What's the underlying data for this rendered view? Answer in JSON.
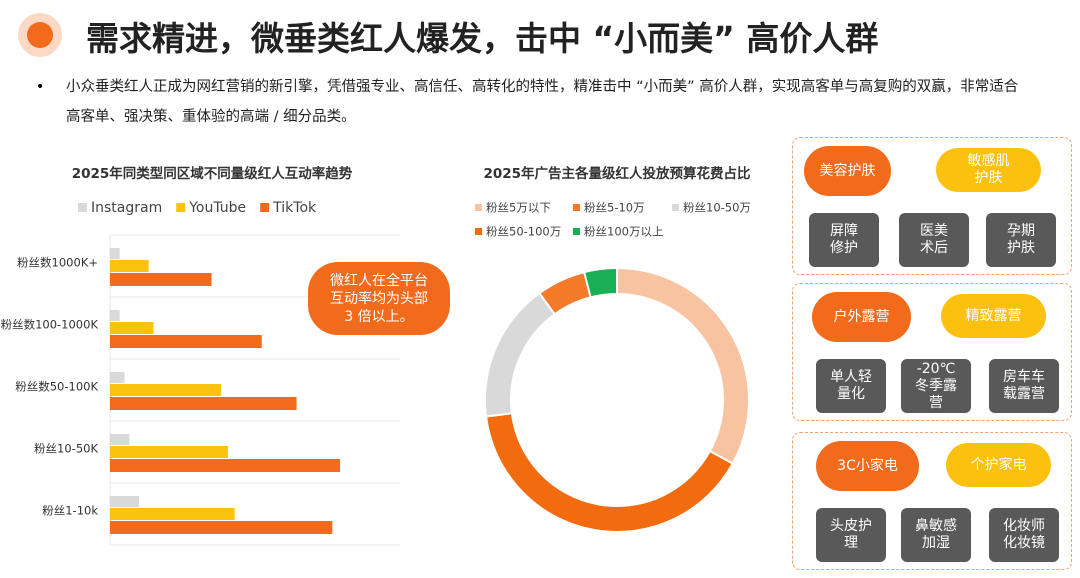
{
  "header": {
    "title": "需求精进，微垂类红人爆发，击中 “小而美” 高价人群"
  },
  "bullet": "小众垂类红人正成为网红营销的新引擎，凭借强专业、高信任、高转化的特性，精准击中 “小而美” 高价人群，实现高客单与高复购的双赢，非常适合高客单、强决策、重体验的高端 / 细分品类。",
  "chart_data": [
    {
      "type": "bar",
      "orientation": "horizontal",
      "title": "2025年同类型同区域不同量级红人互动率趋势",
      "categories": [
        "粉丝数1000K+",
        "粉丝数100-1000K",
        "粉丝数50-100K",
        "粉丝10-50K",
        "粉丝1-10k"
      ],
      "series": [
        {
          "name": "Instagram",
          "color": "#d9d9d9",
          "values": [
            10,
            10,
            15,
            20,
            30
          ]
        },
        {
          "name": "YouTube",
          "color": "#fbc20f",
          "values": [
            40,
            45,
            115,
            122,
            129
          ]
        },
        {
          "name": "TikTok",
          "color": "#f26b1d",
          "values": [
            105,
            157,
            193,
            238,
            230
          ]
        }
      ],
      "xlim": [
        0,
        300
      ],
      "grid": true,
      "annotation": "微红人在全平台\n互动率均为头部\n3 倍以上。"
    },
    {
      "type": "pie",
      "donut": true,
      "title": "2025年广告主各量级红人投放预算花费占比",
      "categories": [
        "粉丝5万以下",
        "粉丝50-100万",
        "粉丝10-50万",
        "粉丝5-10万",
        "粉丝100万以上"
      ],
      "values": [
        33,
        40,
        17,
        6,
        4
      ],
      "colors": [
        "#f8c3a0",
        "#f26b0f",
        "#d9d9d9",
        "#f47a2a",
        "#1aaf54"
      ]
    }
  ],
  "tag_groups": [
    {
      "primary": [
        "美容护肤",
        "敏感肌\n护肤"
      ],
      "details": [
        "屏障\n修护",
        "医美\n术后",
        "孕期\n护肤"
      ]
    },
    {
      "primary": [
        "户外露营",
        "精致露营"
      ],
      "details": [
        "单人轻\n量化",
        "-20℃\n冬季露\n营",
        "房车车\n载露营"
      ]
    },
    {
      "primary": [
        "3C小家电",
        "个护家电"
      ],
      "details": [
        "头皮护\n理",
        "鼻敏感\n加湿",
        "化妆师\n化妆镜"
      ]
    }
  ]
}
